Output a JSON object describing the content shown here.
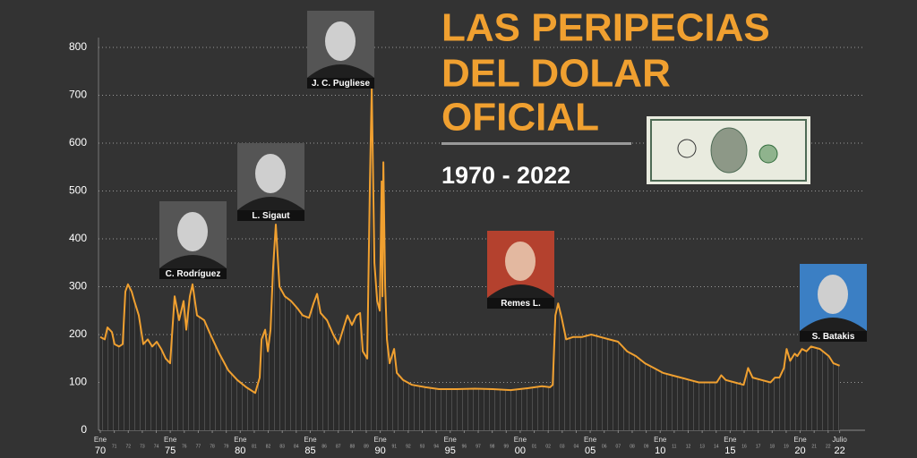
{
  "chart_data": {
    "type": "line",
    "title": [
      "LAS PERIPECIAS",
      "DEL DOLAR",
      "OFICIAL"
    ],
    "subtitle": "1970 - 2022",
    "color": "#f0a030",
    "x": [
      1970.0,
      1970.32,
      1970.51,
      1970.83,
      1971.02,
      1971.34,
      1971.6,
      1971.79,
      1971.98,
      1972.24,
      1972.43,
      1972.75,
      1973.07,
      1973.39,
      1973.71,
      1974.03,
      1974.35,
      1974.67,
      1974.99,
      1975.31,
      1975.63,
      1975.95,
      1976.14,
      1976.4,
      1976.59,
      1976.91,
      1977.42,
      1977.87,
      1978.51,
      1979.15,
      1979.79,
      1980.43,
      1981.07,
      1981.39,
      1981.52,
      1981.78,
      1981.97,
      1982.16,
      1982.35,
      1982.54,
      1982.8,
      1983.18,
      1983.63,
      1984.08,
      1984.46,
      1984.91,
      1985.23,
      1985.49,
      1985.74,
      1986.19,
      1986.64,
      1987.02,
      1987.34,
      1987.66,
      1987.98,
      1988.3,
      1988.56,
      1988.75,
      1989.07,
      1989.26,
      1989.39,
      1989.58,
      1989.78,
      1989.97,
      1990.1,
      1990.16,
      1990.22,
      1990.35,
      1990.48,
      1990.67,
      1990.99,
      1991.18,
      1991.63,
      1992.27,
      1993.23,
      1994.19,
      1995.47,
      1996.75,
      1998.03,
      1999.31,
      2000.59,
      2001.55,
      2002.13,
      2002.32,
      2002.51,
      2002.71,
      2002.96,
      2003.28,
      2003.79,
      2004.43,
      2005.07,
      2005.71,
      2006.35,
      2006.99,
      2007.63,
      2008.27,
      2008.91,
      2009.55,
      2010.19,
      2010.83,
      2011.47,
      2012.11,
      2012.76,
      2013.4,
      2014.04,
      2014.36,
      2014.68,
      2015.32,
      2015.96,
      2016.28,
      2016.6,
      2017.24,
      2017.88,
      2018.2,
      2018.52,
      2018.84,
      2019.03,
      2019.29,
      2019.61,
      2019.8,
      2020.13,
      2020.45,
      2020.77,
      2021.41,
      2022.05,
      2022.37,
      2022.82
    ],
    "values": [
      195,
      190,
      215,
      205,
      180,
      175,
      180,
      290,
      305,
      290,
      270,
      240,
      180,
      190,
      175,
      185,
      170,
      150,
      140,
      280,
      230,
      270,
      210,
      280,
      305,
      240,
      230,
      200,
      160,
      125,
      105,
      90,
      78,
      110,
      190,
      210,
      165,
      210,
      340,
      430,
      300,
      280,
      270,
      255,
      240,
      235,
      265,
      285,
      245,
      230,
      200,
      180,
      210,
      240,
      220,
      240,
      245,
      165,
      150,
      520,
      715,
      350,
      270,
      250,
      520,
      280,
      560,
      300,
      190,
      140,
      170,
      120,
      105,
      95,
      90,
      86,
      86,
      87,
      86,
      84,
      88,
      92,
      90,
      95,
      240,
      265,
      235,
      190,
      195,
      195,
      200,
      195,
      190,
      185,
      165,
      155,
      140,
      130,
      120,
      115,
      110,
      105,
      100,
      100,
      100,
      115,
      105,
      100,
      95,
      130,
      110,
      105,
      100,
      110,
      110,
      130,
      170,
      145,
      160,
      155,
      170,
      165,
      175,
      170,
      155,
      140,
      135
    ],
    "xlim": [
      1970,
      2023.1
    ],
    "ylim": [
      0,
      800
    ],
    "yticks": [
      0,
      100,
      200,
      300,
      400,
      500,
      600,
      700,
      800
    ],
    "grid": true,
    "xticks": [
      {
        "value": 1970,
        "label": "70",
        "month": "Ene"
      },
      {
        "value": 1971,
        "label": "71"
      },
      {
        "value": 1972,
        "label": "72"
      },
      {
        "value": 1973,
        "label": "73"
      },
      {
        "value": 1974,
        "label": "74"
      },
      {
        "value": 1975,
        "label": "75",
        "month": "Ene"
      },
      {
        "value": 1976,
        "label": "76"
      },
      {
        "value": 1977,
        "label": "77"
      },
      {
        "value": 1978,
        "label": "78"
      },
      {
        "value": 1979,
        "label": "79"
      },
      {
        "value": 1980,
        "label": "80",
        "month": "Ene"
      },
      {
        "value": 1981,
        "label": "81"
      },
      {
        "value": 1982,
        "label": "82"
      },
      {
        "value": 1983,
        "label": "83"
      },
      {
        "value": 1984,
        "label": "84"
      },
      {
        "value": 1985,
        "label": "85",
        "month": "Ene"
      },
      {
        "value": 1986,
        "label": "86"
      },
      {
        "value": 1987,
        "label": "87"
      },
      {
        "value": 1988,
        "label": "88"
      },
      {
        "value": 1989,
        "label": "89"
      },
      {
        "value": 1990,
        "label": "90",
        "month": "Ene"
      },
      {
        "value": 1991,
        "label": "91"
      },
      {
        "value": 1992,
        "label": "92"
      },
      {
        "value": 1993,
        "label": "93"
      },
      {
        "value": 1994,
        "label": "94"
      },
      {
        "value": 1995,
        "label": "95",
        "month": "Ene"
      },
      {
        "value": 1996,
        "label": "96"
      },
      {
        "value": 1997,
        "label": "97"
      },
      {
        "value": 1998,
        "label": "98"
      },
      {
        "value": 1999,
        "label": "99"
      },
      {
        "value": 2000,
        "label": "00",
        "month": "Ene"
      },
      {
        "value": 2001,
        "label": "01"
      },
      {
        "value": 2002,
        "label": "02"
      },
      {
        "value": 2003,
        "label": "03"
      },
      {
        "value": 2004,
        "label": "04"
      },
      {
        "value": 2005,
        "label": "05",
        "month": "Ene"
      },
      {
        "value": 2006,
        "label": "06"
      },
      {
        "value": 2007,
        "label": "07"
      },
      {
        "value": 2008,
        "label": "08"
      },
      {
        "value": 2009,
        "label": "09"
      },
      {
        "value": 2010,
        "label": "10",
        "month": "Ene"
      },
      {
        "value": 2011,
        "label": "11"
      },
      {
        "value": 2012,
        "label": "12"
      },
      {
        "value": 2013,
        "label": "13"
      },
      {
        "value": 2014,
        "label": "14"
      },
      {
        "value": 2015,
        "label": "15",
        "month": "Ene"
      },
      {
        "value": 2016,
        "label": "16"
      },
      {
        "value": 2017,
        "label": "17"
      },
      {
        "value": 2018,
        "label": "18"
      },
      {
        "value": 2019,
        "label": "19"
      },
      {
        "value": 2020,
        "label": "20",
        "month": "Ene"
      },
      {
        "value": 2021,
        "label": "21"
      },
      {
        "value": 2022,
        "label": "22"
      },
      {
        "value": 2022.82,
        "label": "22",
        "month": "Julio"
      }
    ],
    "annotations": [
      "C. Rodríguez",
      "L. Sigaut",
      "J. C. Pugliese",
      "Remes L.",
      "S. Batakis"
    ]
  }
}
